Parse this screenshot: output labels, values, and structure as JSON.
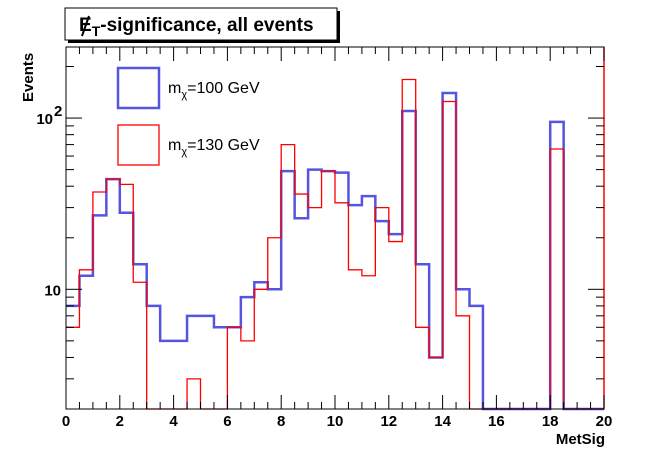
{
  "chart_data": {
    "type": "bar",
    "histogram": true,
    "title": {
      "symbol": "E",
      "subscript": "T",
      "rest": "-significance, all events"
    },
    "xlabel": "MetSig",
    "ylabel": "Events",
    "xlim": [
      0,
      20
    ],
    "ylim": [
      2,
      260
    ],
    "yscale": "log",
    "bin_width": 0.5,
    "x_ticks": [
      "0",
      "2",
      "4",
      "6",
      "8",
      "10",
      "12",
      "14",
      "16",
      "18",
      "20"
    ],
    "y_ticks": [
      {
        "base": "10",
        "exp": ""
      },
      {
        "base": "10",
        "exp": "2"
      }
    ],
    "grid": false,
    "legend_position": "top-left",
    "series": [
      {
        "name": {
          "m": "m",
          "sub": "χ",
          "rest": "=100 GeV"
        },
        "color": "#5555dd",
        "values": [
          8,
          12,
          27,
          44,
          28,
          14,
          8,
          5,
          5,
          7,
          7,
          6,
          6,
          9,
          11,
          10,
          49,
          26,
          50,
          49,
          48,
          31,
          35,
          25,
          21,
          110,
          14,
          4,
          140,
          10,
          8,
          0,
          0,
          0,
          0,
          0,
          95,
          0,
          0,
          0
        ]
      },
      {
        "name": {
          "m": "m",
          "sub": "χ",
          "rest": "=130 GeV"
        },
        "color": "#ff0000",
        "values": [
          6,
          13,
          37,
          44,
          41,
          11,
          0,
          0,
          0,
          3,
          0,
          0,
          6,
          5,
          10,
          20,
          70,
          36,
          30,
          49,
          32,
          13,
          12,
          30,
          19,
          168,
          6,
          4,
          125,
          7,
          0,
          0,
          0,
          0,
          0,
          0,
          66,
          0,
          0,
          0
        ]
      }
    ]
  }
}
